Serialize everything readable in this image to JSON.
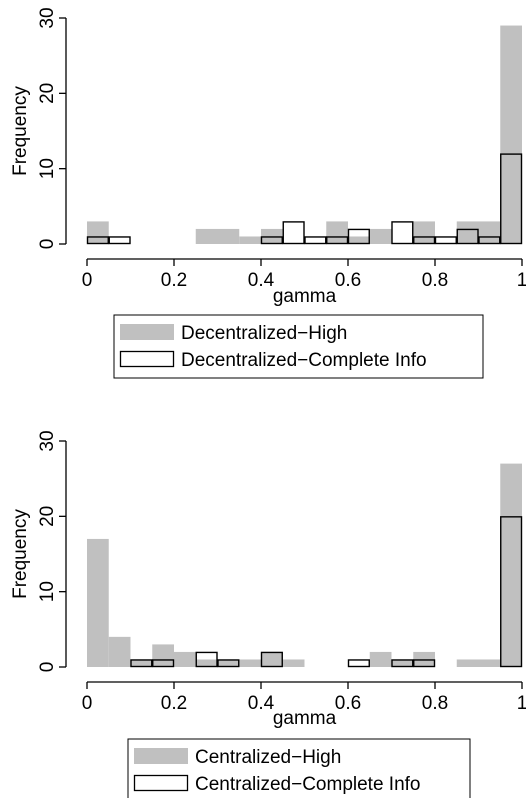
{
  "chart_data": [
    {
      "type": "histogram",
      "xlabel": "gamma",
      "ylabel": "Frequency",
      "xlim": [
        0,
        1
      ],
      "ylim": [
        0,
        30
      ],
      "x_ticks": [
        "0",
        "0.2",
        "0.4",
        "0.6",
        "0.8",
        "1"
      ],
      "y_ticks": [
        "0",
        "10",
        "20",
        "30"
      ],
      "grid": false,
      "legend_placement": "bottom",
      "series": [
        {
          "name": "Decentralized−High",
          "style": "filled",
          "color": "#c0c0c0",
          "bins": [
            {
              "x0": 0.0,
              "x1": 0.05,
              "y": 3
            },
            {
              "x0": 0.25,
              "x1": 0.35,
              "y": 2
            },
            {
              "x0": 0.35,
              "x1": 0.4,
              "y": 1
            },
            {
              "x0": 0.4,
              "x1": 0.45,
              "y": 2
            },
            {
              "x0": 0.55,
              "x1": 0.6,
              "y": 3
            },
            {
              "x0": 0.6,
              "x1": 0.65,
              "y": 1
            },
            {
              "x0": 0.65,
              "x1": 0.7,
              "y": 2
            },
            {
              "x0": 0.75,
              "x1": 0.8,
              "y": 3
            },
            {
              "x0": 0.85,
              "x1": 0.95,
              "y": 3
            },
            {
              "x0": 0.95,
              "x1": 1.0,
              "y": 29
            }
          ]
        },
        {
          "name": "Decentralized−Complete Info",
          "style": "outline",
          "color": "#000000",
          "bins": [
            {
              "x0": 0.0,
              "x1": 0.05,
              "y": 1
            },
            {
              "x0": 0.05,
              "x1": 0.1,
              "y": 1
            },
            {
              "x0": 0.4,
              "x1": 0.45,
              "y": 1
            },
            {
              "x0": 0.45,
              "x1": 0.5,
              "y": 3
            },
            {
              "x0": 0.5,
              "x1": 0.55,
              "y": 1
            },
            {
              "x0": 0.55,
              "x1": 0.6,
              "y": 1
            },
            {
              "x0": 0.6,
              "x1": 0.65,
              "y": 2
            },
            {
              "x0": 0.7,
              "x1": 0.75,
              "y": 3
            },
            {
              "x0": 0.75,
              "x1": 0.8,
              "y": 1
            },
            {
              "x0": 0.8,
              "x1": 0.85,
              "y": 1
            },
            {
              "x0": 0.85,
              "x1": 0.9,
              "y": 2
            },
            {
              "x0": 0.9,
              "x1": 0.95,
              "y": 1
            },
            {
              "x0": 0.95,
              "x1": 1.0,
              "y": 12
            }
          ]
        }
      ]
    },
    {
      "type": "histogram",
      "xlabel": "gamma",
      "ylabel": "Frequency",
      "xlim": [
        0,
        1
      ],
      "ylim": [
        0,
        30
      ],
      "x_ticks": [
        "0",
        "0.2",
        "0.4",
        "0.6",
        "0.8",
        "1"
      ],
      "y_ticks": [
        "0",
        "10",
        "20",
        "30"
      ],
      "grid": false,
      "legend_placement": "bottom",
      "series": [
        {
          "name": "Centralized−High",
          "style": "filled",
          "color": "#c0c0c0",
          "bins": [
            {
              "x0": 0.0,
              "x1": 0.05,
              "y": 17
            },
            {
              "x0": 0.05,
              "x1": 0.1,
              "y": 4
            },
            {
              "x0": 0.1,
              "x1": 0.15,
              "y": 1
            },
            {
              "x0": 0.15,
              "x1": 0.2,
              "y": 3
            },
            {
              "x0": 0.2,
              "x1": 0.25,
              "y": 2
            },
            {
              "x0": 0.25,
              "x1": 0.3,
              "y": 1
            },
            {
              "x0": 0.3,
              "x1": 0.35,
              "y": 1
            },
            {
              "x0": 0.35,
              "x1": 0.4,
              "y": 1
            },
            {
              "x0": 0.4,
              "x1": 0.45,
              "y": 2
            },
            {
              "x0": 0.45,
              "x1": 0.5,
              "y": 1
            },
            {
              "x0": 0.65,
              "x1": 0.7,
              "y": 2
            },
            {
              "x0": 0.7,
              "x1": 0.75,
              "y": 1
            },
            {
              "x0": 0.75,
              "x1": 0.8,
              "y": 2
            },
            {
              "x0": 0.85,
              "x1": 0.95,
              "y": 1
            },
            {
              "x0": 0.95,
              "x1": 1.0,
              "y": 27
            }
          ]
        },
        {
          "name": "Centralized−Complete Info",
          "style": "outline",
          "color": "#000000",
          "bins": [
            {
              "x0": 0.1,
              "x1": 0.15,
              "y": 1
            },
            {
              "x0": 0.15,
              "x1": 0.2,
              "y": 1
            },
            {
              "x0": 0.25,
              "x1": 0.3,
              "y": 2
            },
            {
              "x0": 0.3,
              "x1": 0.35,
              "y": 1
            },
            {
              "x0": 0.4,
              "x1": 0.45,
              "y": 2
            },
            {
              "x0": 0.6,
              "x1": 0.65,
              "y": 1
            },
            {
              "x0": 0.7,
              "x1": 0.75,
              "y": 1
            },
            {
              "x0": 0.75,
              "x1": 0.8,
              "y": 1
            },
            {
              "x0": 0.95,
              "x1": 1.0,
              "y": 20
            }
          ]
        }
      ]
    }
  ]
}
